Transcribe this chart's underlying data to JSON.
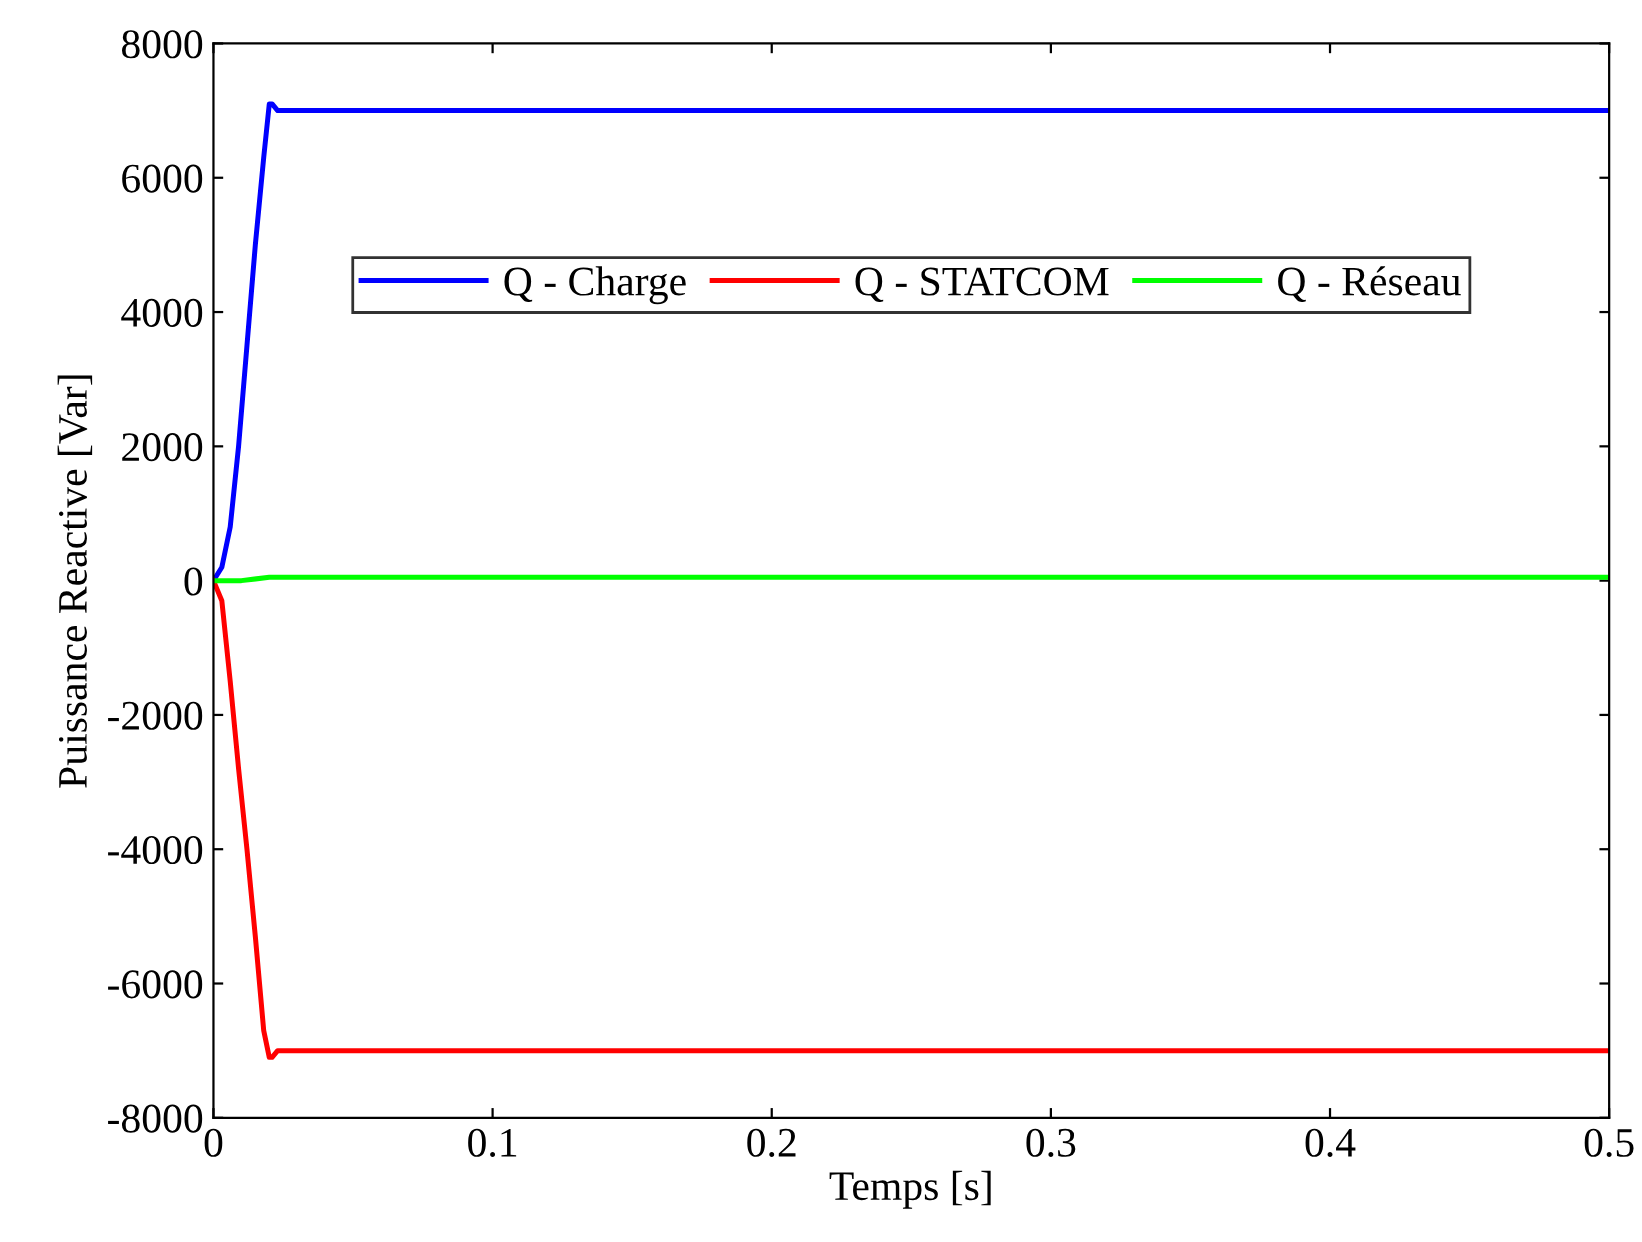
{
  "chart_data": {
    "type": "line",
    "xlabel": "Temps [s]",
    "ylabel": "Puissance Reactive [Var]",
    "xlim": [
      0,
      0.5
    ],
    "xticks": [
      0,
      0.1,
      0.2,
      0.3,
      0.4,
      0.5
    ],
    "ylim": [
      -8000,
      8000
    ],
    "yticks": [
      -8000,
      -6000,
      -4000,
      -2000,
      0,
      2000,
      4000,
      6000,
      8000
    ],
    "grid": false,
    "legend": "top",
    "marker": "none",
    "line_style": "solid",
    "series": [
      {
        "name": "Q - Charge",
        "color": "#0000ff",
        "x": [
          0,
          0.003,
          0.006,
          0.009,
          0.012,
          0.015,
          0.018,
          0.02,
          0.021,
          0.023,
          0.5
        ],
        "values": [
          0,
          200,
          800,
          2000,
          3500,
          5000,
          6300,
          7100,
          7100,
          7000,
          7000
        ]
      },
      {
        "name": "Q - STATCOM",
        "color": "#ff0000",
        "x": [
          0,
          0.003,
          0.006,
          0.009,
          0.012,
          0.015,
          0.018,
          0.02,
          0.021,
          0.023,
          0.5
        ],
        "values": [
          0,
          -300,
          -1500,
          -2800,
          -4000,
          -5300,
          -6700,
          -7100,
          -7100,
          -7000,
          -7000
        ]
      },
      {
        "name": "Q - Réseau",
        "color": "#00ff00",
        "x": [
          0,
          0.01,
          0.02,
          0.5
        ],
        "values": [
          0,
          0,
          50,
          50
        ]
      }
    ]
  }
}
